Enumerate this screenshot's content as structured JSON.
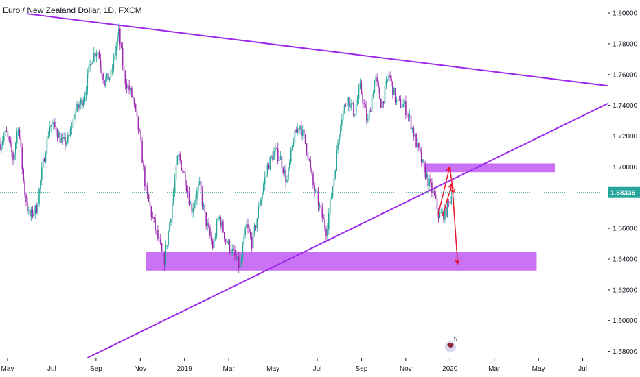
{
  "chart_data": {
    "type": "candlestick",
    "title": "Euro / New Zealand Dollar, 1D, FXCM",
    "y_axis": {
      "position": "right",
      "ylim": [
        1.5758,
        1.8085
      ],
      "ticks": [
        "1.80000",
        "1.78000",
        "1.76000",
        "1.74000",
        "1.72000",
        "1.70000",
        "1.66000",
        "1.64000",
        "1.62000",
        "1.60000",
        "1.58000"
      ]
    },
    "x_axis": {
      "ticks": [
        "May",
        "Jul",
        "Sep",
        "Nov",
        "2019",
        "Mar",
        "May",
        "Jul",
        "Sep",
        "Nov",
        "2020",
        "Mar",
        "May",
        "Jul"
      ]
    },
    "last_price": {
      "label": "1.68336",
      "value": 1.68336,
      "color": "#26a69a"
    },
    "bull_color": "#26a69a",
    "bear_color": "#9c27b0",
    "price_path": [
      {
        "t": 0.0,
        "p": 1.715
      },
      {
        "t": 0.01,
        "p": 1.722
      },
      {
        "t": 0.022,
        "p": 1.705
      },
      {
        "t": 0.03,
        "p": 1.728
      },
      {
        "t": 0.04,
        "p": 1.685
      },
      {
        "t": 0.048,
        "p": 1.667
      },
      {
        "t": 0.06,
        "p": 1.673
      },
      {
        "t": 0.07,
        "p": 1.7
      },
      {
        "t": 0.082,
        "p": 1.728
      },
      {
        "t": 0.093,
        "p": 1.724
      },
      {
        "t": 0.103,
        "p": 1.715
      },
      {
        "t": 0.113,
        "p": 1.718
      },
      {
        "t": 0.123,
        "p": 1.735
      },
      {
        "t": 0.138,
        "p": 1.745
      },
      {
        "t": 0.15,
        "p": 1.77
      },
      {
        "t": 0.16,
        "p": 1.777
      },
      {
        "t": 0.172,
        "p": 1.755
      },
      {
        "t": 0.183,
        "p": 1.76
      },
      {
        "t": 0.195,
        "p": 1.788
      },
      {
        "t": 0.205,
        "p": 1.757
      },
      {
        "t": 0.218,
        "p": 1.745
      },
      {
        "t": 0.23,
        "p": 1.72
      },
      {
        "t": 0.24,
        "p": 1.684
      },
      {
        "t": 0.252,
        "p": 1.665
      },
      {
        "t": 0.262,
        "p": 1.65
      },
      {
        "t": 0.27,
        "p": 1.638
      },
      {
        "t": 0.282,
        "p": 1.672
      },
      {
        "t": 0.293,
        "p": 1.708
      },
      {
        "t": 0.305,
        "p": 1.692
      },
      {
        "t": 0.315,
        "p": 1.672
      },
      {
        "t": 0.328,
        "p": 1.688
      },
      {
        "t": 0.338,
        "p": 1.666
      },
      {
        "t": 0.35,
        "p": 1.648
      },
      {
        "t": 0.36,
        "p": 1.668
      },
      {
        "t": 0.372,
        "p": 1.652
      },
      {
        "t": 0.383,
        "p": 1.644
      },
      {
        "t": 0.395,
        "p": 1.634
      },
      {
        "t": 0.405,
        "p": 1.662
      },
      {
        "t": 0.415,
        "p": 1.65
      },
      {
        "t": 0.428,
        "p": 1.678
      },
      {
        "t": 0.44,
        "p": 1.7
      },
      {
        "t": 0.452,
        "p": 1.71
      },
      {
        "t": 0.462,
        "p": 1.705
      },
      {
        "t": 0.472,
        "p": 1.69
      },
      {
        "t": 0.483,
        "p": 1.718
      },
      {
        "t": 0.493,
        "p": 1.728
      },
      {
        "t": 0.505,
        "p": 1.712
      },
      {
        "t": 0.515,
        "p": 1.688
      },
      {
        "t": 0.527,
        "p": 1.672
      },
      {
        "t": 0.537,
        "p": 1.658
      },
      {
        "t": 0.55,
        "p": 1.695
      },
      {
        "t": 0.56,
        "p": 1.73
      },
      {
        "t": 0.572,
        "p": 1.745
      },
      {
        "t": 0.583,
        "p": 1.735
      },
      {
        "t": 0.593,
        "p": 1.752
      },
      {
        "t": 0.605,
        "p": 1.728
      },
      {
        "t": 0.617,
        "p": 1.758
      },
      {
        "t": 0.628,
        "p": 1.74
      },
      {
        "t": 0.64,
        "p": 1.76
      },
      {
        "t": 0.652,
        "p": 1.742
      },
      {
        "t": 0.665,
        "p": 1.74
      },
      {
        "t": 0.675,
        "p": 1.73
      },
      {
        "t": 0.685,
        "p": 1.715
      },
      {
        "t": 0.695,
        "p": 1.702
      },
      {
        "t": 0.705,
        "p": 1.69
      },
      {
        "t": 0.715,
        "p": 1.68
      },
      {
        "t": 0.722,
        "p": 1.668
      },
      {
        "t": 0.733,
        "p": 1.67
      },
      {
        "t": 0.745,
        "p": 1.684
      }
    ],
    "trendlines": [
      {
        "name": "descending-resistance",
        "from": {
          "t": 0.045,
          "p": 1.7995
        },
        "to": {
          "t": 1.0,
          "p": 1.7527
        },
        "color": "#9c27ed"
      },
      {
        "name": "ascending-support",
        "from": {
          "t": 0.144,
          "p": 1.5758
        },
        "to": {
          "t": 1.0,
          "p": 1.7412
        },
        "color": "#9c27ed"
      }
    ],
    "zones": [
      {
        "name": "lower-demand-zone",
        "t_from": 0.24,
        "t_to": 0.883,
        "p_from": 1.6325,
        "p_to": 1.6445,
        "color": "#bf5af2"
      },
      {
        "name": "upper-supply-zone",
        "t_from": 0.697,
        "t_to": 0.913,
        "p_from": 1.6965,
        "p_to": 1.7022,
        "color": "#bf5af2"
      }
    ],
    "projection_arrows": [
      {
        "from": {
          "t": 0.721,
          "p": 1.669
        },
        "to": {
          "t": 0.74,
          "p": 1.7
        },
        "color": "#e8132b"
      },
      {
        "from": {
          "t": 0.74,
          "p": 1.7
        },
        "to": {
          "t": 0.746,
          "p": 1.683
        },
        "color": "#e8132b"
      },
      {
        "from": {
          "t": 0.728,
          "p": 1.668
        },
        "to": {
          "t": 0.744,
          "p": 1.689
        },
        "color": "#e8132b"
      },
      {
        "from": {
          "t": 0.744,
          "p": 1.689
        },
        "to": {
          "t": 0.753,
          "p": 1.637
        },
        "color": "#e8132b"
      }
    ],
    "watermark_number": "5"
  }
}
